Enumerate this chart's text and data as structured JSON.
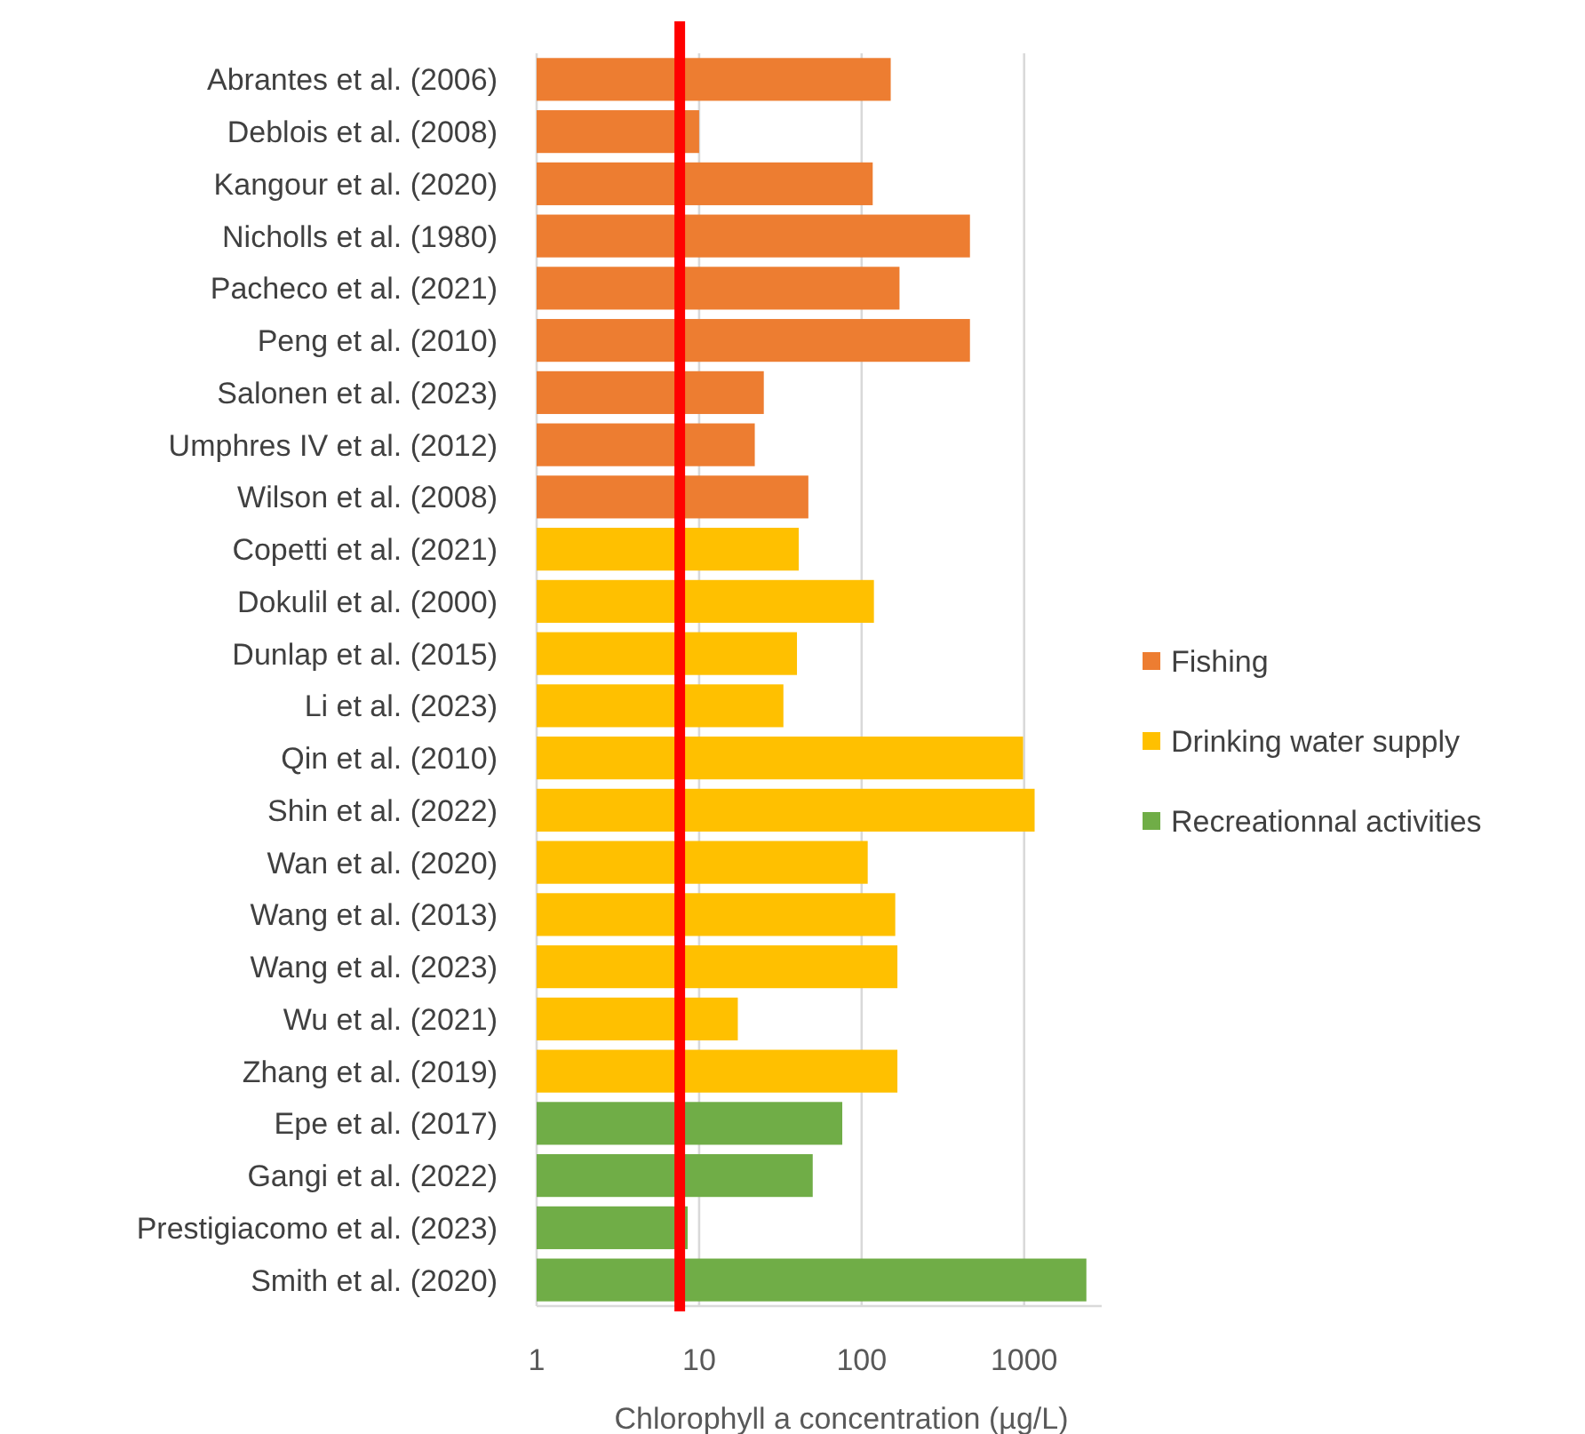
{
  "chart_data": {
    "type": "bar",
    "orientation": "horizontal",
    "xlabel": "Chlorophyll a concentration (µg/L)",
    "categories": [
      "Abrantes et al. (2006)",
      "Deblois et al. (2008)",
      "Kangour et al. (2020)",
      "Nicholls et al. (1980)",
      "Pacheco et al. (2021)",
      "Peng et al. (2010)",
      "Salonen et al. (2023)",
      "Umphres IV et al. (2012)",
      "Wilson et al. (2008)",
      "Copetti et al. (2021)",
      "Dokulil et al. (2000)",
      "Dunlap et al. (2015)",
      "Li et al. (2023)",
      "Qin et al. (2010)",
      "Shin et al. (2022)",
      "Wan et al. (2020)",
      "Wang et al. (2013)",
      "Wang et al. (2023)",
      "Wu et al. (2021)",
      "Zhang et al. (2019)",
      "Epe et al. (2017)",
      "Gangi et al. (2022)",
      "Prestigiacomo et al. (2023)",
      "Smith et al. (2020)"
    ],
    "series": [
      {
        "name": "Fishing",
        "color": "#ed7d31",
        "values": [
          151,
          10,
          117,
          464,
          171,
          464,
          25,
          22,
          47,
          null,
          null,
          null,
          null,
          null,
          null,
          null,
          null,
          null,
          null,
          null,
          null,
          null,
          null,
          null
        ]
      },
      {
        "name": "Drinking water supply",
        "color": "#ffc000",
        "values": [
          null,
          null,
          null,
          null,
          null,
          null,
          null,
          null,
          null,
          41,
          119,
          40,
          33,
          985,
          1160,
          109,
          161,
          166,
          17.3,
          166,
          null,
          null,
          null,
          null
        ]
      },
      {
        "name": "Recreationnal activities",
        "color": "#70ad47",
        "values": [
          null,
          null,
          null,
          null,
          null,
          null,
          null,
          null,
          null,
          null,
          null,
          null,
          null,
          null,
          null,
          null,
          null,
          null,
          null,
          null,
          76,
          50,
          8.5,
          2415
        ]
      }
    ],
    "log": "x",
    "xlim": [
      1,
      3000
    ],
    "xticks": [
      1,
      10,
      100,
      1000
    ],
    "grid": "x",
    "legend": "right",
    "ref_lines": [
      {
        "axis": "x",
        "value": 7.6,
        "color": "#ff0000"
      }
    ]
  }
}
